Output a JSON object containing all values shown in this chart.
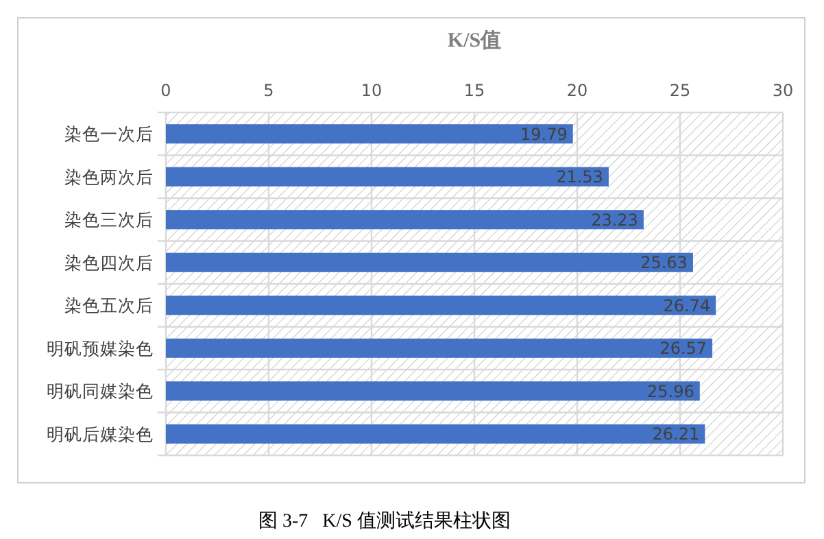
{
  "chart_data": {
    "type": "bar",
    "orientation": "horizontal",
    "title": "K/S值",
    "categories": [
      "染色一次后",
      "染色两次后",
      "染色三次后",
      "染色四次后",
      "染色五次后",
      "明矾预媒染色",
      "明矾同媒染色",
      "明矾后媒染色"
    ],
    "values": [
      19.79,
      21.53,
      23.23,
      25.63,
      26.74,
      26.57,
      25.96,
      26.21
    ],
    "color": "#4472c4",
    "xlim": [
      0,
      30
    ],
    "xticks": [
      0,
      5,
      10,
      15,
      20,
      25,
      30
    ],
    "grid": true,
    "data_labels": true,
    "annotations": [
      "图 3-7   K/S 值测试结果柱状图"
    ]
  }
}
